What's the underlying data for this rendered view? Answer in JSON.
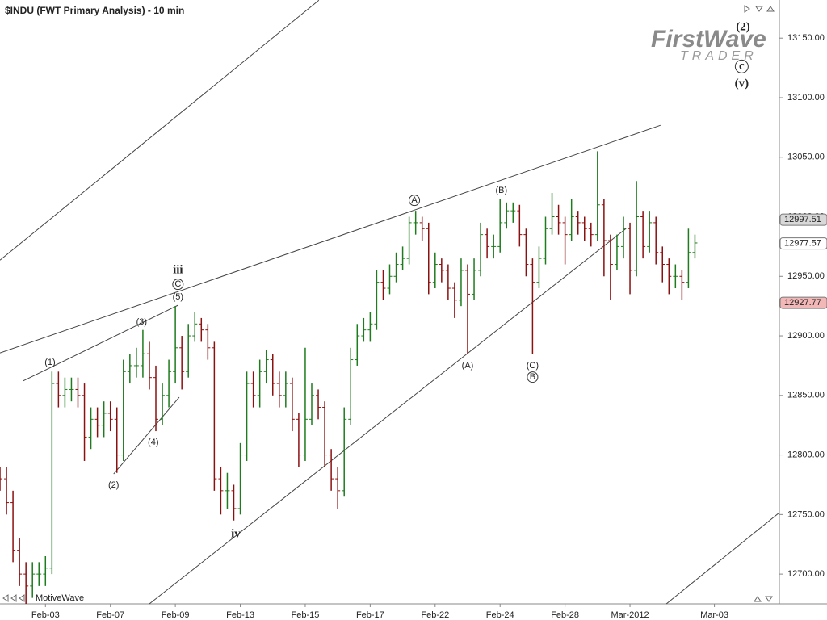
{
  "chart_data": {
    "type": "ohlc",
    "title": "$INDU (FWT Primary Analysis) - 10 min",
    "up_color": "#1e7b1e",
    "down_color": "#8b1010",
    "xlim": [
      0,
      120
    ],
    "xticks": [
      {
        "value": 7,
        "label": "Feb-03"
      },
      {
        "value": 17,
        "label": "Feb-07"
      },
      {
        "value": 27,
        "label": "Feb-09"
      },
      {
        "value": 37,
        "label": "Feb-13"
      },
      {
        "value": 47,
        "label": "Feb-15"
      },
      {
        "value": 57,
        "label": "Feb-17"
      },
      {
        "value": 67,
        "label": "Feb-22"
      },
      {
        "value": 77,
        "label": "Feb-24"
      },
      {
        "value": 87,
        "label": "Feb-28"
      },
      {
        "value": 97,
        "label": "Mar-2012"
      },
      {
        "value": 110,
        "label": "Mar-03"
      }
    ],
    "ylim": [
      12675,
      13182
    ],
    "yticks": [
      {
        "value": 12700,
        "label": "12700.00"
      },
      {
        "value": 12750,
        "label": "12750.00"
      },
      {
        "value": 12800,
        "label": "12800.00"
      },
      {
        "value": 12850,
        "label": "12850.00"
      },
      {
        "value": 12900,
        "label": "12900.00"
      },
      {
        "value": 12950,
        "label": "12950.00"
      },
      {
        "value": 13000,
        "label": "13000.00"
      },
      {
        "value": 13050,
        "label": "13050.00"
      },
      {
        "value": 13100,
        "label": "13100.00"
      },
      {
        "value": 13150,
        "label": "13150.00"
      }
    ],
    "open": [
      12785,
      12780,
      12760,
      12720,
      12700,
      12690,
      12700,
      12700,
      12705,
      12860,
      12850,
      12855,
      12855,
      12850,
      12815,
      12830,
      12825,
      12835,
      12830,
      12800,
      12870,
      12875,
      12875,
      12885,
      12865,
      12830,
      12850,
      12870,
      12890,
      12870,
      12900,
      12910,
      12905,
      12890,
      12780,
      12770,
      12770,
      12755,
      12800,
      12860,
      12850,
      12870,
      12880,
      12860,
      12850,
      12860,
      12830,
      12800,
      12830,
      12850,
      12840,
      12800,
      12780,
      12770,
      12830,
      12880,
      12900,
      12905,
      12910,
      12945,
      12940,
      12950,
      12960,
      12965,
      12995,
      12995,
      12990,
      12945,
      12960,
      12955,
      12940,
      12930,
      12955,
      12935,
      12955,
      12985,
      12975,
      12975,
      12995,
      13005,
      13005,
      12985,
      12960,
      12945,
      12965,
      12990,
      13000,
      12995,
      12985,
      13000,
      12995,
      12990,
      12985,
      13010,
      12980,
      12960,
      12975,
      12990,
      12955,
      13000,
      12975,
      12995,
      12970,
      12960,
      12950,
      12950,
      12945,
      12970
    ],
    "high": [
      12790,
      12790,
      12770,
      12730,
      12710,
      12710,
      12710,
      12715,
      12870,
      12870,
      12865,
      12865,
      12865,
      12860,
      12840,
      12840,
      12845,
      12845,
      12840,
      12880,
      12885,
      12890,
      12905,
      12895,
      12875,
      12860,
      12880,
      12925,
      12900,
      12910,
      12920,
      12915,
      12910,
      12895,
      12790,
      12785,
      12775,
      12810,
      12870,
      12870,
      12880,
      12888,
      12885,
      12870,
      12870,
      12865,
      12835,
      12890,
      12860,
      12855,
      12845,
      12805,
      12790,
      12840,
      12890,
      12910,
      12915,
      12920,
      12955,
      12955,
      12960,
      12970,
      12975,
      13000,
      13005,
      13000,
      12995,
      12970,
      12965,
      12960,
      12945,
      12965,
      12960,
      12965,
      12995,
      12990,
      12985,
      13015,
      13012,
      13012,
      13010,
      12990,
      12965,
      12975,
      13000,
      13020,
      13010,
      13000,
      13015,
      13005,
      13000,
      12995,
      13055,
      13015,
      12985,
      12985,
      13000,
      12995,
      13030,
      13005,
      13005,
      13000,
      12975,
      12965,
      12960,
      12955,
      12990,
      12985
    ],
    "low": [
      12770,
      12750,
      12710,
      12690,
      12675,
      12680,
      12690,
      12690,
      12700,
      12840,
      12840,
      12845,
      12840,
      12795,
      12805,
      12815,
      12815,
      12820,
      12785,
      12795,
      12860,
      12865,
      12865,
      12855,
      12820,
      12825,
      12840,
      12860,
      12855,
      12865,
      12895,
      12895,
      12880,
      12770,
      12750,
      12755,
      12745,
      12750,
      12795,
      12840,
      12840,
      12860,
      12850,
      12840,
      12840,
      12820,
      12790,
      12795,
      12825,
      12830,
      12790,
      12770,
      12755,
      12765,
      12825,
      12875,
      12895,
      12895,
      12905,
      12930,
      12935,
      12945,
      12955,
      12960,
      12985,
      12980,
      12935,
      12940,
      12945,
      12930,
      12915,
      12925,
      12885,
      12930,
      12950,
      12965,
      12965,
      12970,
      12990,
      12995,
      12975,
      12950,
      12885,
      12940,
      12960,
      12985,
      12985,
      12960,
      12980,
      12985,
      12980,
      12975,
      12980,
      12950,
      12930,
      12955,
      12965,
      12935,
      12950,
      12965,
      12970,
      12960,
      12945,
      12935,
      12940,
      12930,
      12940,
      12965
    ],
    "close": [
      12780,
      12760,
      12720,
      12700,
      12690,
      12700,
      12700,
      12705,
      12860,
      12850,
      12855,
      12855,
      12850,
      12815,
      12830,
      12825,
      12835,
      12830,
      12800,
      12870,
      12875,
      12875,
      12885,
      12865,
      12830,
      12850,
      12870,
      12890,
      12870,
      12900,
      12910,
      12905,
      12890,
      12780,
      12770,
      12770,
      12755,
      12800,
      12860,
      12850,
      12870,
      12880,
      12860,
      12850,
      12860,
      12830,
      12800,
      12830,
      12850,
      12840,
      12800,
      12780,
      12770,
      12830,
      12880,
      12900,
      12905,
      12910,
      12945,
      12940,
      12950,
      12960,
      12965,
      12995,
      12995,
      12990,
      12945,
      12960,
      12955,
      12940,
      12930,
      12955,
      12935,
      12955,
      12985,
      12975,
      12975,
      12995,
      13005,
      13005,
      12985,
      12960,
      12945,
      12965,
      12990,
      13000,
      12995,
      12985,
      13000,
      12995,
      12990,
      12985,
      13010,
      12980,
      12960,
      12975,
      12990,
      12955,
      13000,
      12975,
      12995,
      12970,
      12960,
      12950,
      12950,
      12945,
      12970,
      12978
    ],
    "price_markers": [
      {
        "value": 12997.51,
        "color": "#d8d8d8"
      },
      {
        "value": 12977.57,
        "color": "#ffffff"
      },
      {
        "value": 12927.77,
        "color": "#f2b8b8"
      }
    ],
    "trendlines": [
      {
        "x1": 0,
        "y1": 12885.7,
        "x2": 101.7,
        "y2": 13076.8
      },
      {
        "x1": 0,
        "y1": 12963.6,
        "x2": 49.1,
        "y2": 13181.8
      },
      {
        "x1": 23.0,
        "y1": 12675,
        "x2": 96.4,
        "y2": 12990.1
      },
      {
        "x1": 3.5,
        "y1": 12862,
        "x2": 27.4,
        "y2": 12925.7
      },
      {
        "x1": 17.5,
        "y1": 12784.1,
        "x2": 27.6,
        "y2": 12848.5
      },
      {
        "x1": 102.6,
        "y1": 12675,
        "x2": 120,
        "y2": 12751.6
      }
    ],
    "annotations": [
      {
        "text": "(1)",
        "x": 7.7,
        "y": 12877.6
      },
      {
        "text": "(2)",
        "x": 17.5,
        "y": 12774.6
      },
      {
        "text": "(3)",
        "x": 21.8,
        "y": 12911.5
      },
      {
        "text": "(4)",
        "x": 23.6,
        "y": 12810.5
      },
      {
        "text": "(5)",
        "x": 27.4,
        "y": 12932.5
      },
      {
        "text": "C",
        "x": 27.4,
        "y": 12943.3,
        "circled": true
      },
      {
        "text": "iii",
        "x": 27.4,
        "y": 12954.8,
        "bold": true
      },
      {
        "text": "iv",
        "x": 36.3,
        "y": 12733.3,
        "bold": true
      },
      {
        "text": "A",
        "x": 63.8,
        "y": 13013.8,
        "circled": true
      },
      {
        "text": "(B)",
        "x": 77.2,
        "y": 13021.9
      },
      {
        "text": "(A)",
        "x": 72.0,
        "y": 12874.9
      },
      {
        "text": "(C)",
        "x": 82.0,
        "y": 12874.9
      },
      {
        "text": "B",
        "x": 82.0,
        "y": 12865.4,
        "circled": true
      },
      {
        "text": "(2)",
        "x": 114.4,
        "y": 13158.8,
        "bold": true
      },
      {
        "text": "c",
        "x": 114.2,
        "y": 13126.2,
        "circled": true,
        "bold": true
      },
      {
        "text": "(v)",
        "x": 114.2,
        "y": 13111.3,
        "bold": true
      }
    ]
  },
  "logo": {
    "brand": "FirstWave",
    "tagline": "TRADER"
  },
  "watermark": "MotiveWave"
}
